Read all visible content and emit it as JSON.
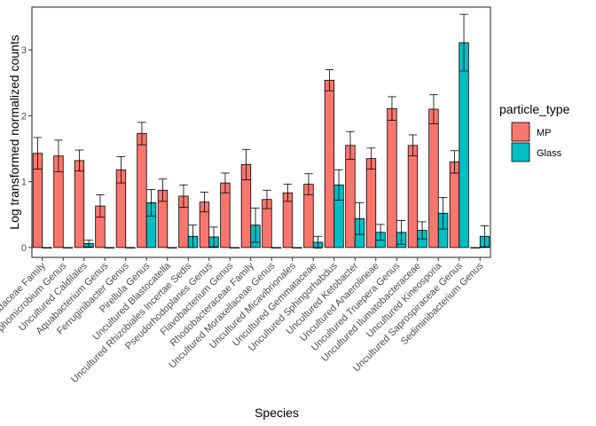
{
  "chart_data": {
    "type": "bar",
    "title": "",
    "xlabel": "Species",
    "ylabel": "Log transformed normalized counts",
    "ylim": [
      -0.15,
      3.65
    ],
    "yticks": [
      0,
      1,
      2,
      3
    ],
    "legend": {
      "title": "particle_type",
      "placement": "right"
    },
    "categories": [
      "…adaceae Family",
      "…phomicrobium Genus",
      "Uncultured Caldilales",
      "Aquabacterium Genus",
      "Ferruginibacter Genus",
      "Pirellula Genus",
      "Uncultured Blastocatella",
      "Uncultured Rhizobiales Incertae Sedis",
      "Pseudorhodoplanes Genus",
      "Flavobacterium Genus",
      "Rhodobacteraceae Family",
      "Uncultured Moraxellaceae Genus",
      "Uncultured Micavibrionales",
      "Uncultured Gemmataceae",
      "Uncultured Sphingorhabdus",
      "Uncultured Ketobacter",
      "Uncultured Anaerolineae",
      "Uncultured Trueperа Genus",
      "Uncultured Ilumatobacteraceae",
      "Uncultured Kineosporia",
      "Uncultured Saprospiraceae Genus",
      "Sediminibacterium Genus"
    ],
    "series": [
      {
        "name": "MP",
        "color": "#F8766D",
        "values": [
          1.43,
          1.39,
          1.32,
          0.63,
          1.18,
          1.73,
          0.87,
          0.78,
          0.69,
          0.98,
          1.26,
          0.73,
          0.83,
          0.96,
          2.54,
          1.55,
          1.35,
          2.11,
          1.55,
          2.1,
          1.3,
          0.0
        ],
        "errors": [
          0.24,
          0.24,
          0.16,
          0.17,
          0.2,
          0.17,
          0.17,
          0.17,
          0.15,
          0.15,
          0.23,
          0.14,
          0.13,
          0.16,
          0.16,
          0.21,
          0.16,
          0.18,
          0.16,
          0.22,
          0.17,
          0.0
        ]
      },
      {
        "name": "Glass",
        "color": "#00BFC4",
        "values": [
          0.0,
          0.0,
          0.06,
          0.0,
          0.0,
          0.68,
          0.0,
          0.17,
          0.16,
          0.0,
          0.34,
          0.0,
          0.0,
          0.08,
          0.95,
          0.44,
          0.23,
          0.23,
          0.26,
          0.52,
          3.11,
          0.17
        ],
        "errors": [
          0.0,
          0.0,
          0.05,
          0.0,
          0.0,
          0.2,
          0.0,
          0.17,
          0.15,
          0.0,
          0.26,
          0.0,
          0.0,
          0.09,
          0.23,
          0.24,
          0.12,
          0.18,
          0.13,
          0.24,
          0.43,
          0.16
        ]
      }
    ]
  }
}
